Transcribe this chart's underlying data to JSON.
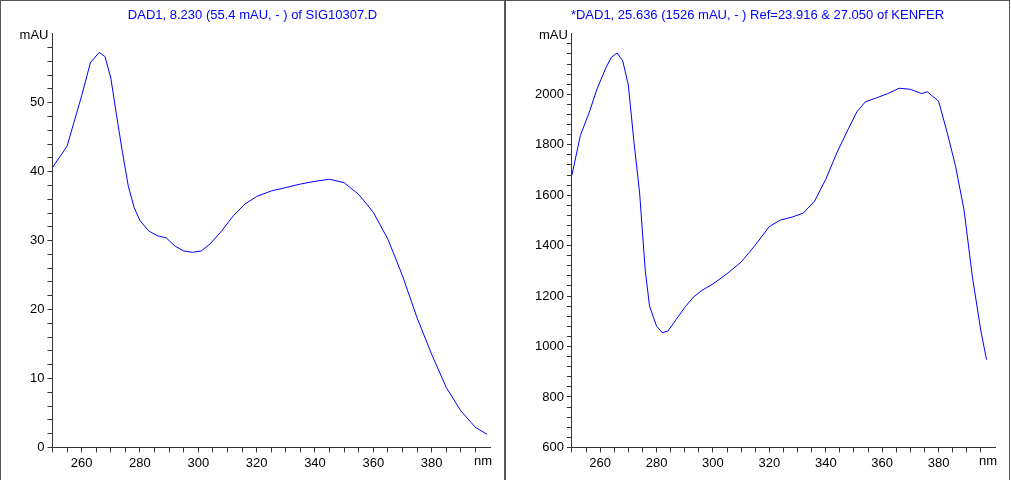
{
  "chart_data": [
    {
      "type": "line",
      "title": "DAD1, 8.230 (55.4 mAU, - ) of SIG10307.D",
      "xlabel": "nm",
      "ylabel": "mAU",
      "color": "#0000ff",
      "x": [
        250,
        255,
        260,
        263,
        266,
        268,
        270,
        272,
        274,
        276,
        278,
        280,
        283,
        286,
        289,
        292,
        295,
        298,
        301,
        304,
        308,
        312,
        316,
        320,
        325,
        330,
        335,
        340,
        345,
        350,
        355,
        360,
        365,
        370,
        375,
        380,
        385,
        390,
        395,
        399
      ],
      "values": [
        40.6,
        43.7,
        51.0,
        55.8,
        57.3,
        56.7,
        53.6,
        48.1,
        42.8,
        37.9,
        34.8,
        32.9,
        31.4,
        30.7,
        30.4,
        29.2,
        28.5,
        28.3,
        28.5,
        29.5,
        31.4,
        33.6,
        35.3,
        36.4,
        37.2,
        37.7,
        38.2,
        38.6,
        38.9,
        38.4,
        36.7,
        34.1,
        30.2,
        24.9,
        18.8,
        13.5,
        8.7,
        5.3,
        2.9,
        1.9
      ],
      "xlim": [
        250,
        400
      ],
      "ylim": [
        0,
        60
      ],
      "xticks": [
        {
          "value": 250,
          "label": null
        },
        {
          "value": 255,
          "label": null
        },
        260,
        {
          "value": 265,
          "label": null
        },
        {
          "value": 270,
          "label": null
        },
        {
          "value": 275,
          "label": null
        },
        280,
        {
          "value": 285,
          "label": null
        },
        {
          "value": 290,
          "label": null
        },
        {
          "value": 295,
          "label": null
        },
        300,
        {
          "value": 305,
          "label": null
        },
        {
          "value": 310,
          "label": null
        },
        {
          "value": 315,
          "label": null
        },
        320,
        {
          "value": 325,
          "label": null
        },
        {
          "value": 330,
          "label": null
        },
        {
          "value": 335,
          "label": null
        },
        340,
        {
          "value": 345,
          "label": null
        },
        {
          "value": 350,
          "label": null
        },
        {
          "value": 355,
          "label": null
        },
        360,
        {
          "value": 365,
          "label": null
        },
        {
          "value": 370,
          "label": null
        },
        {
          "value": 375,
          "label": null
        },
        380,
        {
          "value": 385,
          "label": null
        },
        {
          "value": 390,
          "label": null
        },
        {
          "value": 395,
          "label": null
        }
      ],
      "yticks": [
        0,
        {
          "value": 2,
          "label": null
        },
        {
          "value": 4,
          "label": null
        },
        {
          "value": 6,
          "label": null
        },
        {
          "value": 8,
          "label": null
        },
        10,
        {
          "value": 12,
          "label": null
        },
        {
          "value": 14,
          "label": null
        },
        {
          "value": 16,
          "label": null
        },
        {
          "value": 18,
          "label": null
        },
        20,
        {
          "value": 22,
          "label": null
        },
        {
          "value": 24,
          "label": null
        },
        {
          "value": 26,
          "label": null
        },
        {
          "value": 28,
          "label": null
        },
        30,
        {
          "value": 32,
          "label": null
        },
        {
          "value": 34,
          "label": null
        },
        {
          "value": 36,
          "label": null
        },
        {
          "value": 38,
          "label": null
        },
        40,
        {
          "value": 42,
          "label": null
        },
        {
          "value": 44,
          "label": null
        },
        {
          "value": 46,
          "label": null
        },
        {
          "value": 48,
          "label": null
        },
        50,
        {
          "value": 52,
          "label": null
        },
        {
          "value": 54,
          "label": null
        },
        {
          "value": 56,
          "label": null
        },
        {
          "value": 58,
          "label": null
        }
      ]
    },
    {
      "type": "line",
      "title": "*DAD1, 25.636 (1526 mAU, - ) Ref=23.916 & 27.050 of KENFER",
      "xlabel": "nm",
      "ylabel": "mAU",
      "color": "#0000ff",
      "x": [
        250,
        253,
        256,
        259,
        262,
        264,
        266,
        268,
        270,
        272,
        274,
        276,
        277.5,
        280,
        282,
        284,
        287,
        290,
        293,
        296,
        300,
        305,
        310,
        315,
        320,
        324,
        328,
        332,
        336,
        340,
        344,
        348,
        351,
        354,
        358,
        362,
        366,
        370,
        374,
        376,
        380,
        383,
        386,
        389,
        392,
        395,
        397
      ],
      "values": [
        1679,
        1837,
        1924,
        2024,
        2104,
        2147,
        2164,
        2133,
        2037,
        1810,
        1609,
        1302,
        1161,
        1081,
        1055,
        1061,
        1108,
        1155,
        1195,
        1222,
        1248,
        1289,
        1335,
        1402,
        1476,
        1502,
        1513,
        1529,
        1576,
        1663,
        1770,
        1863,
        1930,
        1970,
        1986,
        2003,
        2024,
        2020,
        2003,
        2010,
        1973,
        1850,
        1716,
        1543,
        1275,
        1061,
        948
      ],
      "xlim": [
        250,
        400
      ],
      "ylim": [
        600,
        2240
      ],
      "xticks": [
        {
          "value": 250,
          "label": null
        },
        {
          "value": 255,
          "label": null
        },
        260,
        {
          "value": 265,
          "label": null
        },
        {
          "value": 270,
          "label": null
        },
        {
          "value": 275,
          "label": null
        },
        280,
        {
          "value": 285,
          "label": null
        },
        {
          "value": 290,
          "label": null
        },
        {
          "value": 295,
          "label": null
        },
        300,
        {
          "value": 305,
          "label": null
        },
        {
          "value": 310,
          "label": null
        },
        {
          "value": 315,
          "label": null
        },
        320,
        {
          "value": 325,
          "label": null
        },
        {
          "value": 330,
          "label": null
        },
        {
          "value": 335,
          "label": null
        },
        340,
        {
          "value": 345,
          "label": null
        },
        {
          "value": 350,
          "label": null
        },
        {
          "value": 355,
          "label": null
        },
        360,
        {
          "value": 365,
          "label": null
        },
        {
          "value": 370,
          "label": null
        },
        {
          "value": 375,
          "label": null
        },
        380,
        {
          "value": 385,
          "label": null
        },
        {
          "value": 390,
          "label": null
        },
        {
          "value": 395,
          "label": null
        }
      ],
      "yticks": [
        600,
        {
          "value": 640,
          "label": null
        },
        {
          "value": 680,
          "label": null
        },
        {
          "value": 720,
          "label": null
        },
        {
          "value": 760,
          "label": null
        },
        800,
        {
          "value": 840,
          "label": null
        },
        {
          "value": 880,
          "label": null
        },
        {
          "value": 920,
          "label": null
        },
        {
          "value": 960,
          "label": null
        },
        1000,
        {
          "value": 1040,
          "label": null
        },
        {
          "value": 1080,
          "label": null
        },
        {
          "value": 1120,
          "label": null
        },
        {
          "value": 1160,
          "label": null
        },
        1200,
        {
          "value": 1240,
          "label": null
        },
        {
          "value": 1280,
          "label": null
        },
        {
          "value": 1320,
          "label": null
        },
        {
          "value": 1360,
          "label": null
        },
        1400,
        {
          "value": 1440,
          "label": null
        },
        {
          "value": 1480,
          "label": null
        },
        {
          "value": 1520,
          "label": null
        },
        {
          "value": 1560,
          "label": null
        },
        1600,
        {
          "value": 1640,
          "label": null
        },
        {
          "value": 1680,
          "label": null
        },
        {
          "value": 1720,
          "label": null
        },
        {
          "value": 1760,
          "label": null
        },
        1800,
        {
          "value": 1840,
          "label": null
        },
        {
          "value": 1880,
          "label": null
        },
        {
          "value": 1920,
          "label": null
        },
        {
          "value": 1960,
          "label": null
        },
        2000,
        {
          "value": 2040,
          "label": null
        },
        {
          "value": 2080,
          "label": null
        },
        {
          "value": 2120,
          "label": null
        },
        {
          "value": 2160,
          "label": null
        },
        {
          "value": 2200,
          "label": null
        }
      ]
    }
  ]
}
